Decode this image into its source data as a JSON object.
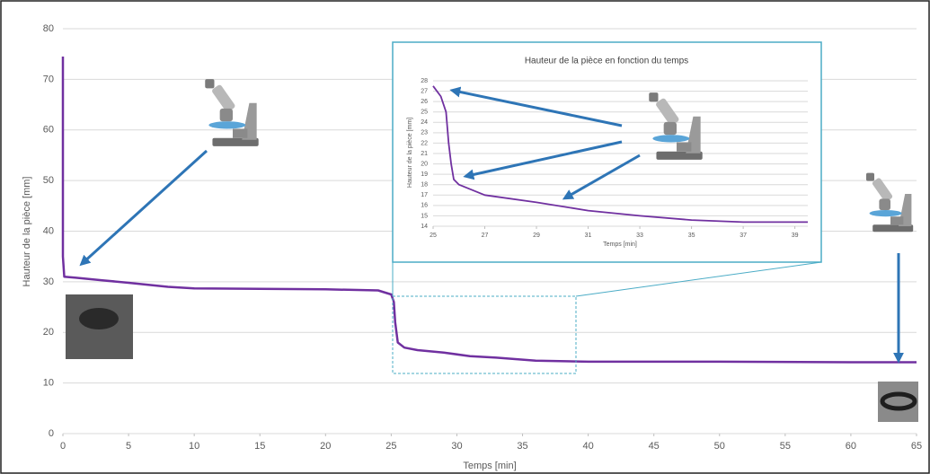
{
  "chart_data": [
    {
      "type": "line",
      "x_label": "Temps [min]",
      "y_label": "Hauteur de la pièce [mm]",
      "xlim": [
        0,
        65
      ],
      "xticks": [
        0,
        5,
        10,
        15,
        20,
        25,
        30,
        35,
        40,
        45,
        50,
        55,
        60,
        65
      ],
      "ylim": [
        0,
        80
      ],
      "yticks": [
        0,
        10,
        20,
        30,
        40,
        50,
        60,
        70,
        80
      ],
      "grid": true,
      "series": [
        {
          "color": "#7030a0",
          "x": [
            0,
            0,
            0,
            0,
            0.1,
            1,
            3,
            5,
            8,
            10,
            15,
            20,
            24,
            25,
            25.2,
            25.3,
            25.5,
            26,
            27,
            29,
            31,
            33,
            36,
            40,
            50,
            60,
            65
          ],
          "values": [
            74.5,
            60,
            45,
            35,
            31,
            30.8,
            30.3,
            29.8,
            29,
            28.7,
            28.6,
            28.5,
            28.3,
            27.5,
            26,
            22,
            18,
            17,
            16.5,
            16,
            15.3,
            15,
            14.4,
            14.2,
            14.2,
            14.1,
            14.1
          ]
        }
      ]
    },
    {
      "type": "line",
      "title": "Hauteur de la pièce en fonction du temps",
      "x_label": "Temps [min]",
      "y_label": "Hauteur de la pièce [mm]",
      "xlim": [
        25,
        39.5
      ],
      "xticks": [
        25,
        27,
        29,
        31,
        33,
        35,
        37,
        39
      ],
      "ylim": [
        14,
        28
      ],
      "yticks": [
        14,
        15,
        16,
        17,
        18,
        19,
        20,
        21,
        22,
        23,
        24,
        25,
        26,
        27,
        28
      ],
      "grid": true,
      "series": [
        {
          "color": "#7030a0",
          "x": [
            25,
            25.3,
            25.5,
            25.6,
            25.7,
            25.8,
            26,
            27,
            29,
            31,
            33,
            35,
            37,
            39.5
          ],
          "values": [
            27.5,
            26.5,
            25,
            22,
            20,
            18.5,
            18,
            17,
            16.3,
            15.5,
            15,
            14.6,
            14.4,
            14.4
          ]
        }
      ]
    }
  ]
}
